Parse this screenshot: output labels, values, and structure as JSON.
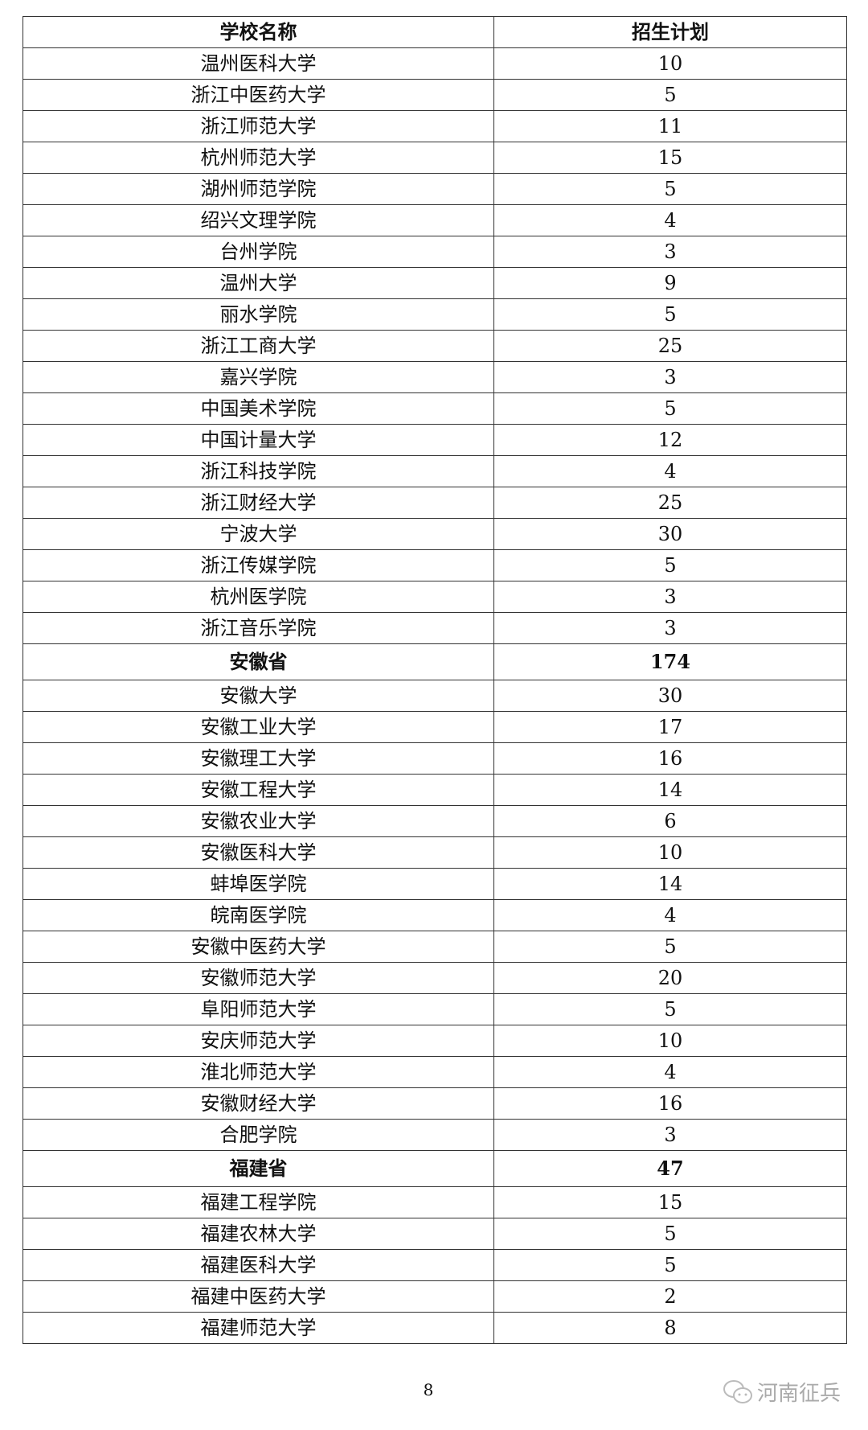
{
  "table": {
    "headers": [
      "学校名称",
      "招生计划"
    ],
    "rows": [
      {
        "name": "温州医科大学",
        "plan": "10"
      },
      {
        "name": "浙江中医药大学",
        "plan": "5"
      },
      {
        "name": "浙江师范大学",
        "plan": "11"
      },
      {
        "name": "杭州师范大学",
        "plan": "15"
      },
      {
        "name": "湖州师范学院",
        "plan": "5"
      },
      {
        "name": "绍兴文理学院",
        "plan": "4"
      },
      {
        "name": "台州学院",
        "plan": "3"
      },
      {
        "name": "温州大学",
        "plan": "9"
      },
      {
        "name": "丽水学院",
        "plan": "5"
      },
      {
        "name": "浙江工商大学",
        "plan": "25"
      },
      {
        "name": "嘉兴学院",
        "plan": "3"
      },
      {
        "name": "中国美术学院",
        "plan": "5"
      },
      {
        "name": "中国计量大学",
        "plan": "12"
      },
      {
        "name": "浙江科技学院",
        "plan": "4"
      },
      {
        "name": "浙江财经大学",
        "plan": "25"
      },
      {
        "name": "宁波大学",
        "plan": "30"
      },
      {
        "name": "浙江传媒学院",
        "plan": "5"
      },
      {
        "name": "杭州医学院",
        "plan": "3"
      },
      {
        "name": "浙江音乐学院",
        "plan": "3"
      },
      {
        "name": "安徽省",
        "plan": "174",
        "province": true
      },
      {
        "name": "安徽大学",
        "plan": "30"
      },
      {
        "name": "安徽工业大学",
        "plan": "17"
      },
      {
        "name": "安徽理工大学",
        "plan": "16"
      },
      {
        "name": "安徽工程大学",
        "plan": "14"
      },
      {
        "name": "安徽农业大学",
        "plan": "6"
      },
      {
        "name": "安徽医科大学",
        "plan": "10"
      },
      {
        "name": "蚌埠医学院",
        "plan": "14"
      },
      {
        "name": "皖南医学院",
        "plan": "4"
      },
      {
        "name": "安徽中医药大学",
        "plan": "5"
      },
      {
        "name": "安徽师范大学",
        "plan": "20"
      },
      {
        "name": "阜阳师范大学",
        "plan": "5"
      },
      {
        "name": "安庆师范大学",
        "plan": "10"
      },
      {
        "name": "淮北师范大学",
        "plan": "4"
      },
      {
        "name": "安徽财经大学",
        "plan": "16"
      },
      {
        "name": "合肥学院",
        "plan": "3"
      },
      {
        "name": "福建省",
        "plan": "47",
        "province": true
      },
      {
        "name": "福建工程学院",
        "plan": "15"
      },
      {
        "name": "福建农林大学",
        "plan": "5"
      },
      {
        "name": "福建医科大学",
        "plan": "5"
      },
      {
        "name": "福建中医药大学",
        "plan": "2"
      },
      {
        "name": "福建师范大学",
        "plan": "8"
      }
    ]
  },
  "page_number": "8",
  "watermark": {
    "text": "河南征兵",
    "icon": "wechat-icon"
  }
}
